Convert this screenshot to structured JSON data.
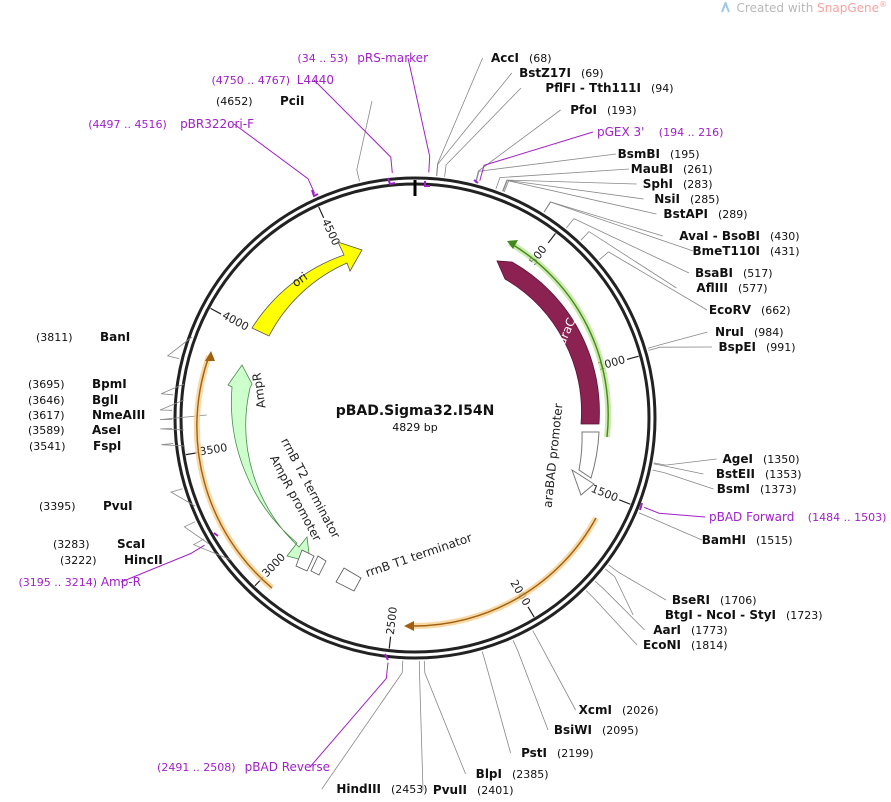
{
  "watermark": {
    "prefix": "Created with ",
    "brand": "SnapGene",
    "mark": "®"
  },
  "plasmid": {
    "name": "pBAD.Sigma32.I54N",
    "size_label": "4829 bp",
    "length": 4829
  },
  "tick_labels": [
    "500",
    "1000",
    "1500",
    "2000",
    "2500",
    "3000",
    "3500",
    "4000",
    "4500"
  ],
  "sites": [
    {
      "name": "AccI",
      "pos_label": "(68)"
    },
    {
      "name": "BstZ17I",
      "pos_label": "(69)"
    },
    {
      "name": "PflFI - Tth111I",
      "pos_label": "(94)"
    },
    {
      "name": "PfoI",
      "pos_label": "(193)"
    },
    {
      "name": "BsmBI",
      "pos_label": "(195)"
    },
    {
      "name": "MauBI",
      "pos_label": "(261)"
    },
    {
      "name": "SphI",
      "pos_label": "(283)"
    },
    {
      "name": "NsiI",
      "pos_label": "(285)"
    },
    {
      "name": "BstAPI",
      "pos_label": "(289)"
    },
    {
      "name": "AvaI - BsoBI",
      "pos_label": "(430)"
    },
    {
      "name": "BmeT110I",
      "pos_label": "(431)"
    },
    {
      "name": "BsaBI",
      "pos_label": "(517)"
    },
    {
      "name": "AflIII",
      "pos_label": "(577)"
    },
    {
      "name": "EcoRV",
      "pos_label": "(662)"
    },
    {
      "name": "NruI",
      "pos_label": "(984)"
    },
    {
      "name": "BspEI",
      "pos_label": "(991)"
    },
    {
      "name": "AgeI",
      "pos_label": "(1350)"
    },
    {
      "name": "BstEII",
      "pos_label": "(1353)"
    },
    {
      "name": "BsmI",
      "pos_label": "(1373)"
    },
    {
      "name": "BamHI",
      "pos_label": "(1515)"
    },
    {
      "name": "BseRI",
      "pos_label": "(1706)"
    },
    {
      "name": "BtgI - NcoI - StyI",
      "pos_label": "(1723)"
    },
    {
      "name": "AarI",
      "pos_label": "(1773)"
    },
    {
      "name": "EcoNI",
      "pos_label": "(1814)"
    },
    {
      "name": "XcmI",
      "pos_label": "(2026)"
    },
    {
      "name": "BsiWI",
      "pos_label": "(2095)"
    },
    {
      "name": "PstI",
      "pos_label": "(2199)"
    },
    {
      "name": "BlpI",
      "pos_label": "(2385)"
    },
    {
      "name": "PvuII",
      "pos_label": "(2401)"
    },
    {
      "name": "HindIII",
      "pos_label": "(2453)"
    },
    {
      "name": "HincII",
      "pos_label": "(3222)"
    },
    {
      "name": "ScaI",
      "pos_label": "(3283)"
    },
    {
      "name": "PvuI",
      "pos_label": "(3395)"
    },
    {
      "name": "FspI",
      "pos_label": "(3541)"
    },
    {
      "name": "AseI",
      "pos_label": "(3589)"
    },
    {
      "name": "NmeAIII",
      "pos_label": "(3617)"
    },
    {
      "name": "BglI",
      "pos_label": "(3646)"
    },
    {
      "name": "BpmI",
      "pos_label": "(3695)"
    },
    {
      "name": "BanI",
      "pos_label": "(3811)"
    },
    {
      "name": "PciI",
      "pos_label": "(4652)"
    }
  ],
  "primers": [
    {
      "name": "pRS-marker",
      "range_label": "(34 .. 53)"
    },
    {
      "name": "L4440",
      "range_label": "(4750 .. 4767)"
    },
    {
      "name": "pBR322ori-F",
      "range_label": "(4497 .. 4516)"
    },
    {
      "name": "pGEX 3'",
      "range_label": "(194 .. 216)"
    },
    {
      "name": "pBAD Forward",
      "range_label": "(1484 .. 1503)"
    },
    {
      "name": "Amp-R",
      "range_label": "(3195 .. 3214)"
    },
    {
      "name": "pBAD Reverse",
      "range_label": "(2491 .. 2508)"
    }
  ],
  "features": [
    {
      "name": "araC",
      "color": "#8b2252"
    },
    {
      "name": "araBAD promoter",
      "color": "#ffffff"
    },
    {
      "name": "ori",
      "color": "#ffff00"
    },
    {
      "name": "AmpR",
      "color": "#ccffcc"
    },
    {
      "name": "AmpR promoter",
      "color": "#ffffff"
    },
    {
      "name": "rrnB T2 terminator",
      "color": "#ffffff"
    },
    {
      "name": "rrnB T1 terminator",
      "color": "#ffffff"
    }
  ],
  "colors": {
    "primer": "#a020c8",
    "backbone": "#222222",
    "araC": "#8b2252",
    "ori": "#ffff00",
    "ampR": "#ccffcc",
    "orf_orange": "#e8a33d",
    "orf_green": "#7fc24a"
  }
}
